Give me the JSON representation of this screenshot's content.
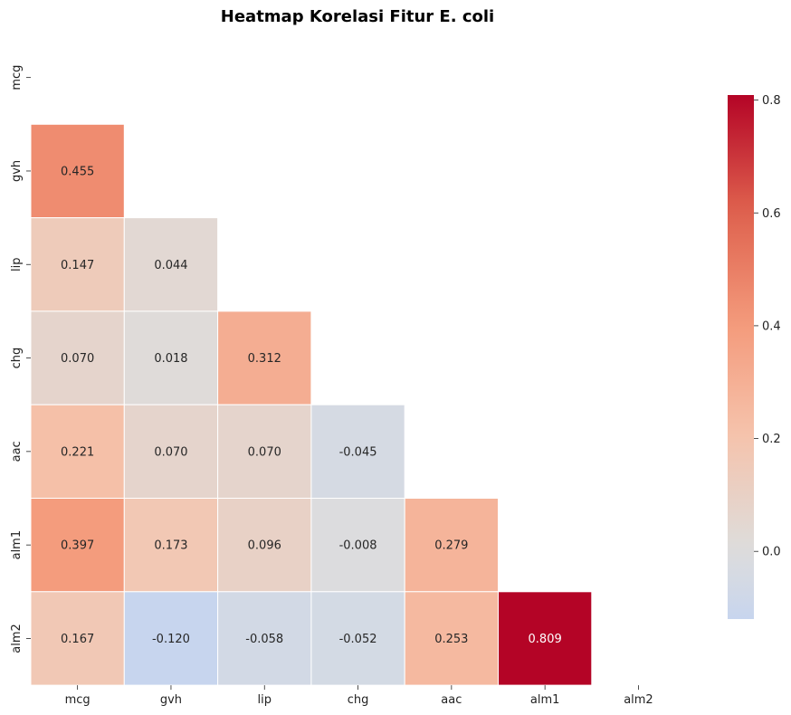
{
  "chart_data": {
    "type": "heatmap",
    "title": "Heatmap Korelasi Fitur E. coli",
    "xlabel": "",
    "ylabel": "",
    "rows": [
      "mcg",
      "gvh",
      "lip",
      "chg",
      "aac",
      "alm1",
      "alm2"
    ],
    "cols": [
      "mcg",
      "gvh",
      "lip",
      "chg",
      "aac",
      "alm1",
      "alm2"
    ],
    "mask": "upper-triangle-including-diagonal",
    "values": [
      [
        null,
        null,
        null,
        null,
        null,
        null,
        null
      ],
      [
        0.455,
        null,
        null,
        null,
        null,
        null,
        null
      ],
      [
        0.147,
        0.044,
        null,
        null,
        null,
        null,
        null
      ],
      [
        0.07,
        0.018,
        0.312,
        null,
        null,
        null,
        null
      ],
      [
        0.221,
        0.07,
        0.07,
        -0.045,
        null,
        null,
        null
      ],
      [
        0.397,
        0.173,
        0.096,
        -0.008,
        0.279,
        null,
        null
      ],
      [
        0.167,
        -0.12,
        -0.058,
        -0.052,
        0.253,
        0.809,
        null
      ]
    ],
    "labels": [
      [
        null,
        null,
        null,
        null,
        null,
        null,
        null
      ],
      [
        "0.455",
        null,
        null,
        null,
        null,
        null,
        null
      ],
      [
        "0.147",
        "0.044",
        null,
        null,
        null,
        null,
        null
      ],
      [
        "0.070",
        "0.018",
        "0.312",
        null,
        null,
        null,
        null
      ],
      [
        "0.221",
        "0.070",
        "0.070",
        "-0.045",
        null,
        null,
        null
      ],
      [
        "0.397",
        "0.173",
        "0.096",
        "-0.008",
        "0.279",
        null,
        null
      ],
      [
        "0.167",
        "-0.120",
        "-0.058",
        "-0.052",
        "0.253",
        "0.809",
        null
      ]
    ],
    "colormap": "coolwarm",
    "center": 0,
    "vmin": -0.12,
    "vmax": 0.809,
    "colorbar_ticks": [
      0.0,
      0.2,
      0.4,
      0.6,
      0.8
    ],
    "colorbar_tick_labels": [
      "0.0",
      "0.2",
      "0.4",
      "0.6",
      "0.8"
    ],
    "grid": false,
    "legend": "colorbar-right"
  }
}
